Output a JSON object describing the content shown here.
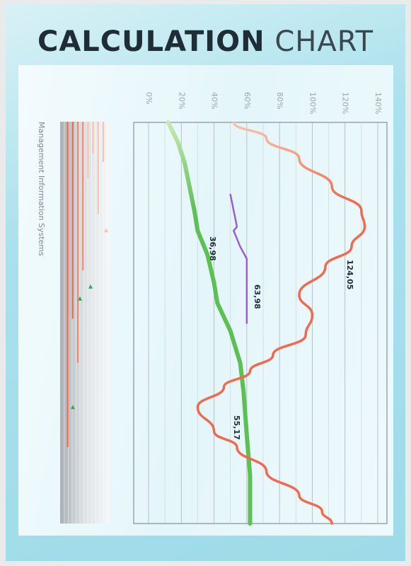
{
  "title": {
    "bold": "CALCULATION",
    "light": "CHART"
  },
  "colors": {
    "green": "#5cc052",
    "green_light": "#c8e8b4",
    "red": "#ef6a50",
    "red_light": "#f9c4ad",
    "purple": "#9b5fc8",
    "marker": "#3aa35a"
  },
  "chart_data": {
    "type": "line",
    "orientation": "rotated",
    "value_axis": {
      "ticks": [
        "0%",
        "20%",
        "40%",
        "60%",
        "80%",
        "100%",
        "120%",
        "140%"
      ],
      "range": [
        0,
        140
      ]
    },
    "series": [
      {
        "color": "green",
        "points": [
          [
            0,
            12
          ],
          [
            5,
            18
          ],
          [
            10,
            22
          ],
          [
            14,
            24
          ],
          [
            18,
            26
          ],
          [
            22,
            28
          ],
          [
            27,
            30
          ],
          [
            33,
            36
          ],
          [
            40,
            40
          ],
          [
            45,
            42
          ],
          [
            52,
            50
          ],
          [
            60,
            56
          ],
          [
            67,
            58
          ],
          [
            78,
            60
          ],
          [
            88,
            62
          ],
          [
            100,
            62
          ]
        ]
      },
      {
        "color": "red",
        "points": [
          [
            0,
            52
          ],
          [
            4,
            72
          ],
          [
            9,
            92
          ],
          [
            16,
            112
          ],
          [
            22,
            130
          ],
          [
            26,
            132
          ],
          [
            31,
            124
          ],
          [
            36,
            108
          ],
          [
            43,
            92
          ],
          [
            48,
            100
          ],
          [
            53,
            96
          ],
          [
            58,
            76
          ],
          [
            62,
            62
          ],
          [
            66,
            46
          ],
          [
            71,
            30
          ],
          [
            77,
            40
          ],
          [
            81,
            54
          ],
          [
            87,
            72
          ],
          [
            93,
            92
          ],
          [
            97,
            106
          ],
          [
            100,
            112
          ]
        ]
      },
      {
        "color": "purple",
        "points": [
          [
            18,
            50
          ],
          [
            22,
            52
          ],
          [
            26,
            54
          ],
          [
            27,
            52
          ],
          [
            29,
            54
          ],
          [
            31,
            56
          ],
          [
            34,
            60
          ],
          [
            40,
            60
          ],
          [
            46,
            60
          ],
          [
            50,
            60
          ]
        ]
      }
    ],
    "annotations": [
      {
        "label": "36,98",
        "value": 36.98
      },
      {
        "label": "124,05",
        "value": 124.05
      },
      {
        "label": "63,98",
        "value": 63.98
      },
      {
        "label": "55,17",
        "value": 55.17
      }
    ]
  },
  "side_panel": {
    "label": "Management Information Systems",
    "bars": [
      {
        "start": 0,
        "end": 10,
        "tone": "light"
      },
      {
        "start": 0,
        "end": 23,
        "tone": "light"
      },
      {
        "start": 0,
        "end": 8,
        "tone": "light"
      },
      {
        "start": 0,
        "end": 14,
        "tone": "light"
      },
      {
        "start": 0,
        "end": 37,
        "tone": "mid"
      },
      {
        "start": 0,
        "end": 60,
        "tone": "mid"
      },
      {
        "start": 0,
        "end": 49,
        "tone": "dark"
      },
      {
        "start": 0,
        "end": 81,
        "tone": "dark"
      }
    ],
    "markers": [
      {
        "at": 27,
        "tone": "light"
      },
      {
        "at": 41,
        "tone": "dark"
      },
      {
        "at": 44,
        "tone": "dark"
      },
      {
        "at": 71,
        "tone": "dark"
      }
    ]
  }
}
